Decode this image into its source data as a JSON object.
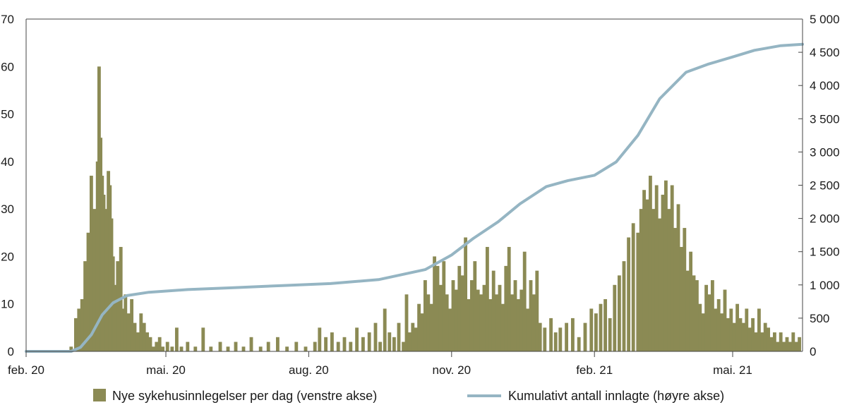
{
  "chart_data": {
    "type": "bar+line",
    "title": "",
    "x_tick_labels": [
      "feb. 20",
      "mai. 20",
      "aug. 20",
      "nov. 20",
      "feb. 21",
      "mai. 21"
    ],
    "x_range": [
      "2020-02-01",
      "2021-06-15"
    ],
    "y_left": {
      "range": [
        0,
        70
      ],
      "tick_labels": [
        "0",
        "10",
        "20",
        "30",
        "40",
        "50",
        "60",
        "70"
      ]
    },
    "y_right": {
      "range": [
        0,
        5000
      ],
      "tick_labels": [
        "0",
        "500",
        "1 000",
        "1 500",
        "2 000",
        "2 500",
        "3 000",
        "3 500",
        "4 000",
        "4 500",
        "5 000"
      ]
    },
    "grid": false,
    "legend_position": "bottom",
    "series": [
      {
        "name": "Nye sykehusinnlegelser per dag (venstre akse)",
        "type": "bar",
        "axis": "left",
        "color": "#8b8a54",
        "points": [
          [
            "2020-03-01",
            1
          ],
          [
            "2020-03-04",
            7
          ],
          [
            "2020-03-06",
            9
          ],
          [
            "2020-03-08",
            11
          ],
          [
            "2020-03-10",
            19
          ],
          [
            "2020-03-12",
            25
          ],
          [
            "2020-03-14",
            37
          ],
          [
            "2020-03-16",
            30
          ],
          [
            "2020-03-18",
            40
          ],
          [
            "2020-03-19",
            60
          ],
          [
            "2020-03-20",
            45
          ],
          [
            "2020-03-21",
            37
          ],
          [
            "2020-03-22",
            33
          ],
          [
            "2020-03-24",
            30
          ],
          [
            "2020-03-25",
            38
          ],
          [
            "2020-03-26",
            35
          ],
          [
            "2020-03-27",
            28
          ],
          [
            "2020-03-28",
            20
          ],
          [
            "2020-03-29",
            14
          ],
          [
            "2020-03-31",
            19
          ],
          [
            "2020-04-01",
            14
          ],
          [
            "2020-04-02",
            22
          ],
          [
            "2020-04-03",
            9
          ],
          [
            "2020-04-05",
            12
          ],
          [
            "2020-04-07",
            8
          ],
          [
            "2020-04-09",
            11
          ],
          [
            "2020-04-11",
            6
          ],
          [
            "2020-04-13",
            4
          ],
          [
            "2020-04-15",
            8
          ],
          [
            "2020-04-17",
            6
          ],
          [
            "2020-04-19",
            4
          ],
          [
            "2020-04-21",
            3
          ],
          [
            "2020-04-23",
            1
          ],
          [
            "2020-04-25",
            2
          ],
          [
            "2020-04-27",
            3
          ],
          [
            "2020-04-29",
            1
          ],
          [
            "2020-05-02",
            2
          ],
          [
            "2020-05-05",
            1
          ],
          [
            "2020-05-08",
            5
          ],
          [
            "2020-05-11",
            1
          ],
          [
            "2020-05-15",
            2
          ],
          [
            "2020-05-20",
            1
          ],
          [
            "2020-05-25",
            5
          ],
          [
            "2020-05-30",
            1
          ],
          [
            "2020-06-05",
            2
          ],
          [
            "2020-06-10",
            1
          ],
          [
            "2020-06-15",
            2
          ],
          [
            "2020-06-20",
            1
          ],
          [
            "2020-06-25",
            3
          ],
          [
            "2020-07-01",
            1
          ],
          [
            "2020-07-06",
            2
          ],
          [
            "2020-07-12",
            3
          ],
          [
            "2020-07-18",
            1
          ],
          [
            "2020-07-24",
            2
          ],
          [
            "2020-07-30",
            1
          ],
          [
            "2020-08-05",
            2
          ],
          [
            "2020-08-08",
            5
          ],
          [
            "2020-08-12",
            3
          ],
          [
            "2020-08-16",
            4
          ],
          [
            "2020-08-20",
            2
          ],
          [
            "2020-08-24",
            3
          ],
          [
            "2020-08-28",
            2
          ],
          [
            "2020-09-01",
            5
          ],
          [
            "2020-09-05",
            3
          ],
          [
            "2020-09-09",
            4
          ],
          [
            "2020-09-13",
            6
          ],
          [
            "2020-09-16",
            2
          ],
          [
            "2020-09-19",
            9
          ],
          [
            "2020-09-22",
            4
          ],
          [
            "2020-09-25",
            3
          ],
          [
            "2020-09-28",
            6
          ],
          [
            "2020-10-01",
            2
          ],
          [
            "2020-10-03",
            12
          ],
          [
            "2020-10-05",
            4
          ],
          [
            "2020-10-07",
            6
          ],
          [
            "2020-10-09",
            5
          ],
          [
            "2020-10-11",
            10
          ],
          [
            "2020-10-13",
            8
          ],
          [
            "2020-10-15",
            15
          ],
          [
            "2020-10-17",
            12
          ],
          [
            "2020-10-19",
            10
          ],
          [
            "2020-10-21",
            20
          ],
          [
            "2020-10-23",
            18
          ],
          [
            "2020-10-25",
            14
          ],
          [
            "2020-10-27",
            19
          ],
          [
            "2020-10-29",
            12
          ],
          [
            "2020-10-31",
            9
          ],
          [
            "2020-11-02",
            15
          ],
          [
            "2020-11-04",
            13
          ],
          [
            "2020-11-06",
            18
          ],
          [
            "2020-11-08",
            16
          ],
          [
            "2020-11-10",
            24
          ],
          [
            "2020-11-12",
            11
          ],
          [
            "2020-11-14",
            15
          ],
          [
            "2020-11-16",
            19
          ],
          [
            "2020-11-18",
            13
          ],
          [
            "2020-11-20",
            12
          ],
          [
            "2020-11-22",
            14
          ],
          [
            "2020-11-24",
            22
          ],
          [
            "2020-11-26",
            11
          ],
          [
            "2020-11-28",
            17
          ],
          [
            "2020-11-30",
            12
          ],
          [
            "2020-12-02",
            14
          ],
          [
            "2020-12-04",
            10
          ],
          [
            "2020-12-06",
            18
          ],
          [
            "2020-12-08",
            22
          ],
          [
            "2020-12-10",
            12
          ],
          [
            "2020-12-12",
            15
          ],
          [
            "2020-12-14",
            11
          ],
          [
            "2020-12-16",
            13
          ],
          [
            "2020-12-18",
            21
          ],
          [
            "2020-12-20",
            9
          ],
          [
            "2020-12-22",
            15
          ],
          [
            "2020-12-24",
            12
          ],
          [
            "2020-12-26",
            17
          ],
          [
            "2020-12-28",
            6
          ],
          [
            "2020-12-31",
            5
          ],
          [
            "2021-01-04",
            7
          ],
          [
            "2021-01-07",
            4
          ],
          [
            "2021-01-10",
            5
          ],
          [
            "2021-01-14",
            6
          ],
          [
            "2021-01-18",
            7
          ],
          [
            "2021-01-22",
            3
          ],
          [
            "2021-01-26",
            6
          ],
          [
            "2021-01-30",
            9
          ],
          [
            "2021-02-02",
            8
          ],
          [
            "2021-02-05",
            10
          ],
          [
            "2021-02-08",
            11
          ],
          [
            "2021-02-11",
            7
          ],
          [
            "2021-02-14",
            14
          ],
          [
            "2021-02-17",
            16
          ],
          [
            "2021-02-20",
            19
          ],
          [
            "2021-02-23",
            24
          ],
          [
            "2021-02-26",
            27
          ],
          [
            "2021-03-01",
            25
          ],
          [
            "2021-03-03",
            30
          ],
          [
            "2021-03-05",
            34
          ],
          [
            "2021-03-07",
            32
          ],
          [
            "2021-03-09",
            37
          ],
          [
            "2021-03-11",
            30
          ],
          [
            "2021-03-13",
            35
          ],
          [
            "2021-03-15",
            28
          ],
          [
            "2021-03-17",
            33
          ],
          [
            "2021-03-19",
            36
          ],
          [
            "2021-03-21",
            30
          ],
          [
            "2021-03-23",
            35
          ],
          [
            "2021-03-25",
            26
          ],
          [
            "2021-03-27",
            31
          ],
          [
            "2021-03-29",
            22
          ],
          [
            "2021-03-31",
            26
          ],
          [
            "2021-04-02",
            17
          ],
          [
            "2021-04-04",
            21
          ],
          [
            "2021-04-06",
            16
          ],
          [
            "2021-04-08",
            15
          ],
          [
            "2021-04-10",
            10
          ],
          [
            "2021-04-12",
            8
          ],
          [
            "2021-04-14",
            14
          ],
          [
            "2021-04-16",
            12
          ],
          [
            "2021-04-18",
            15
          ],
          [
            "2021-04-20",
            9
          ],
          [
            "2021-04-22",
            11
          ],
          [
            "2021-04-24",
            8
          ],
          [
            "2021-04-26",
            13
          ],
          [
            "2021-04-28",
            7
          ],
          [
            "2021-04-30",
            9
          ],
          [
            "2021-05-02",
            6
          ],
          [
            "2021-05-04",
            10
          ],
          [
            "2021-05-06",
            7
          ],
          [
            "2021-05-08",
            6
          ],
          [
            "2021-05-10",
            9
          ],
          [
            "2021-05-12",
            5
          ],
          [
            "2021-05-14",
            7
          ],
          [
            "2021-05-16",
            4
          ],
          [
            "2021-05-18",
            9
          ],
          [
            "2021-05-20",
            4
          ],
          [
            "2021-05-22",
            6
          ],
          [
            "2021-05-24",
            5
          ],
          [
            "2021-05-26",
            3
          ],
          [
            "2021-05-28",
            4
          ],
          [
            "2021-05-30",
            2
          ],
          [
            "2021-06-01",
            4
          ],
          [
            "2021-06-03",
            2
          ],
          [
            "2021-06-05",
            3
          ],
          [
            "2021-06-07",
            2
          ],
          [
            "2021-06-09",
            4
          ],
          [
            "2021-06-11",
            2
          ],
          [
            "2021-06-13",
            3
          ]
        ]
      },
      {
        "name": "Kumulativt antall innlagte (høyre akse)",
        "type": "line",
        "axis": "right",
        "color": "#95b5c3",
        "points": [
          [
            "2020-02-01",
            0
          ],
          [
            "2020-03-01",
            0
          ],
          [
            "2020-03-07",
            60
          ],
          [
            "2020-03-14",
            250
          ],
          [
            "2020-03-21",
            550
          ],
          [
            "2020-03-28",
            730
          ],
          [
            "2020-04-06",
            840
          ],
          [
            "2020-04-20",
            890
          ],
          [
            "2020-05-15",
            930
          ],
          [
            "2020-06-15",
            960
          ],
          [
            "2020-07-15",
            990
          ],
          [
            "2020-08-15",
            1020
          ],
          [
            "2020-09-15",
            1080
          ],
          [
            "2020-10-15",
            1230
          ],
          [
            "2020-11-01",
            1450
          ],
          [
            "2020-11-15",
            1700
          ],
          [
            "2020-12-01",
            1950
          ],
          [
            "2020-12-15",
            2220
          ],
          [
            "2021-01-01",
            2480
          ],
          [
            "2021-01-15",
            2570
          ],
          [
            "2021-02-01",
            2650
          ],
          [
            "2021-02-15",
            2850
          ],
          [
            "2021-03-01",
            3250
          ],
          [
            "2021-03-15",
            3800
          ],
          [
            "2021-04-01",
            4200
          ],
          [
            "2021-04-15",
            4320
          ],
          [
            "2021-05-01",
            4430
          ],
          [
            "2021-05-15",
            4530
          ],
          [
            "2021-06-01",
            4600
          ],
          [
            "2021-06-15",
            4620
          ]
        ]
      }
    ]
  }
}
